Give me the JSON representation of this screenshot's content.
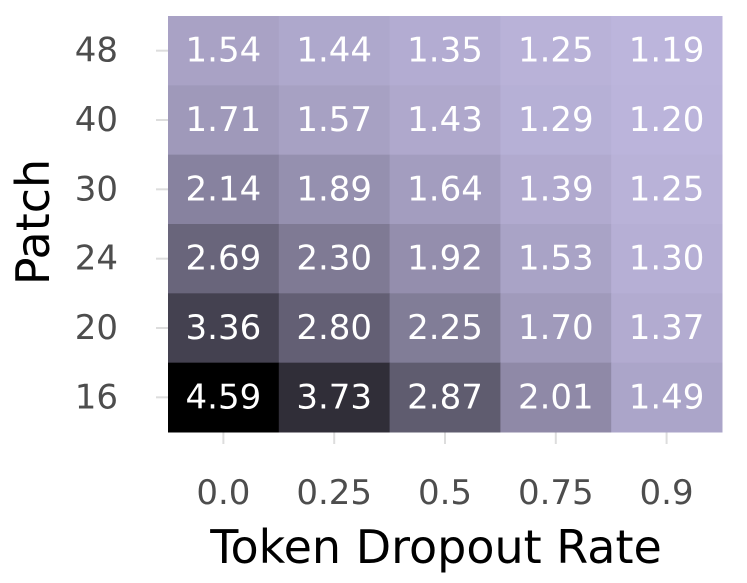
{
  "chart_data": {
    "type": "heatmap",
    "xlabel": "Token Dropout Rate",
    "ylabel": "Patch",
    "x_categories": [
      "0.0",
      "0.25",
      "0.5",
      "0.75",
      "0.9"
    ],
    "y_categories": [
      "48",
      "40",
      "30",
      "24",
      "20",
      "16"
    ],
    "values": [
      [
        1.54,
        1.44,
        1.35,
        1.25,
        1.19
      ],
      [
        1.71,
        1.57,
        1.43,
        1.29,
        1.2
      ],
      [
        2.14,
        1.89,
        1.64,
        1.39,
        1.25
      ],
      [
        2.69,
        2.3,
        1.92,
        1.53,
        1.3
      ],
      [
        3.36,
        2.8,
        2.25,
        1.7,
        1.37
      ],
      [
        4.59,
        3.73,
        2.87,
        2.01,
        1.49
      ]
    ],
    "value_labels": [
      [
        "1.54",
        "1.44",
        "1.35",
        "1.25",
        "1.19"
      ],
      [
        "1.71",
        "1.57",
        "1.43",
        "1.29",
        "1.20"
      ],
      [
        "2.14",
        "1.89",
        "1.64",
        "1.39",
        "1.25"
      ],
      [
        "2.69",
        "2.30",
        "1.92",
        "1.53",
        "1.30"
      ],
      [
        "3.36",
        "2.80",
        "2.25",
        "1.70",
        "1.37"
      ],
      [
        "4.59",
        "3.73",
        "2.87",
        "2.01",
        "1.49"
      ]
    ],
    "colormap": [
      "#bcb5dc",
      "#000000"
    ]
  }
}
